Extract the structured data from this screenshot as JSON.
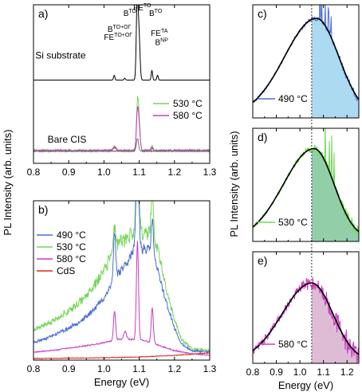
{
  "shared": {
    "ylabel": "PL Intensity (arb. units)",
    "xlabel": "Energy (eV)",
    "ref_line_energy": 1.05
  },
  "colors": {
    "black": "#000000",
    "c490": "#4a6fd3",
    "c530": "#77d65a",
    "c580": "#c83cc0",
    "cdS": "#e0241b",
    "gray": "#777777",
    "fill490": "#9ed3ee",
    "fill530": "#7fc79a",
    "fill580": "#d9b0cf"
  },
  "chart_data": [
    {
      "id": "a",
      "panel_label": "a)",
      "type": "line",
      "xlim": [
        0.8,
        1.3
      ],
      "xticks": [
        0.8,
        0.9,
        1.0,
        1.1,
        1.2,
        1.3
      ],
      "xticklabels": [
        "0.8",
        "0.9",
        "1.0",
        "1.1",
        "1.2",
        "1.3"
      ],
      "ylim": [
        0,
        1
      ],
      "y_ticks_labeled": false,
      "legend": {
        "placement": "right",
        "entries": [
          {
            "label": "530 °C",
            "color_key": "c530"
          },
          {
            "label": "580 °C",
            "color_key": "c580"
          }
        ]
      },
      "sample_labels": [
        {
          "text": "Si substrate",
          "x": 0.805,
          "y": 0.66
        },
        {
          "text": "Bare CIS",
          "x": 0.84,
          "y": 0.13
        }
      ],
      "annotations": [
        {
          "base": "FE",
          "sup": "TO+OΓ",
          "x": 1.0,
          "y": 0.78
        },
        {
          "base": "B",
          "sup": "TO+OΓ",
          "x": 1.01,
          "y": 0.83
        },
        {
          "base": "B",
          "sup": "TO",
          "x": 1.055,
          "y": 0.93
        },
        {
          "base": "FE",
          "sup": "TO",
          "x": 1.083,
          "y": 0.965
        },
        {
          "base": "B",
          "sup": "TO",
          "x": 1.128,
          "y": 0.93
        },
        {
          "base": "FE",
          "sup": "TA",
          "x": 1.133,
          "y": 0.805
        },
        {
          "base": "B",
          "sup": "NP",
          "x": 1.145,
          "y": 0.745
        }
      ],
      "series": [
        {
          "name": "Si substrate",
          "color_key": "black",
          "baseline": 0.525,
          "noise": 0.0,
          "seed": 1,
          "peaks": [
            [
              1.029,
              0.03,
              0.002
            ],
            [
              1.059,
              0.012,
              0.002
            ],
            [
              1.094,
              0.45,
              0.0025
            ],
            [
              1.099,
              0.3,
              0.003
            ],
            [
              1.136,
              0.06,
              0.002
            ],
            [
              1.152,
              0.03,
              0.002
            ]
          ]
        },
        {
          "name": "530 °C",
          "color_key": "c530",
          "baseline": 0.08,
          "noise": 0.006,
          "seed": 7,
          "peaks": [
            [
              1.03,
              0.03,
              0.004
            ],
            [
              1.095,
              0.29,
              0.003
            ],
            [
              1.1,
              0.15,
              0.003
            ],
            [
              1.136,
              0.03,
              0.003
            ]
          ]
        },
        {
          "name": "580 °C",
          "color_key": "c580",
          "baseline": 0.08,
          "noise": 0.006,
          "seed": 11,
          "peaks": [
            [
              1.03,
              0.02,
              0.004
            ],
            [
              1.095,
              0.24,
              0.003
            ],
            [
              1.1,
              0.12,
              0.003
            ],
            [
              1.136,
              0.02,
              0.003
            ]
          ]
        },
        {
          "name": "gray",
          "color_key": "gray",
          "baseline": 0.077,
          "noise": 0.003,
          "seed": 3,
          "peaks": [
            [
              1.095,
              0.08,
              0.003
            ]
          ]
        }
      ]
    },
    {
      "id": "b",
      "panel_label": "b)",
      "type": "line",
      "xlim": [
        0.8,
        1.3
      ],
      "xticks": [
        0.8,
        0.9,
        1.0,
        1.1,
        1.2,
        1.3
      ],
      "xticklabels": [
        "0.8",
        "0.9",
        "1.0",
        "1.1",
        "1.2",
        "1.3"
      ],
      "ylim": [
        0,
        1
      ],
      "y_ticks_labeled": false,
      "xlabel": "Energy (eV)",
      "legend": {
        "placement": "left",
        "entries": [
          {
            "label": "490 °C",
            "color_key": "c490"
          },
          {
            "label": "530 °C",
            "color_key": "c530"
          },
          {
            "label": "580 °C",
            "color_key": "c580"
          },
          {
            "label": "CdS",
            "color_key": "cdS"
          }
        ]
      },
      "series": [
        {
          "name": "530 °C",
          "color_key": "c530",
          "model": "broad",
          "seed": 21,
          "noise": 0.015,
          "knots": [
            [
              0.8,
              0.19
            ],
            [
              0.85,
              0.24
            ],
            [
              0.9,
              0.31
            ],
            [
              0.95,
              0.4
            ],
            [
              1.0,
              0.56
            ],
            [
              1.02,
              0.65
            ],
            [
              1.04,
              0.74
            ],
            [
              1.06,
              0.76
            ],
            [
              1.08,
              0.79
            ],
            [
              1.1,
              0.8
            ],
            [
              1.12,
              0.8
            ],
            [
              1.14,
              0.8
            ],
            [
              1.16,
              0.62
            ],
            [
              1.18,
              0.42
            ],
            [
              1.2,
              0.25
            ],
            [
              1.22,
              0.13
            ],
            [
              1.25,
              0.07
            ],
            [
              1.3,
              0.06
            ]
          ],
          "peaks": [
            [
              1.03,
              0.15,
              0.003
            ],
            [
              1.095,
              0.5,
              0.004
            ],
            [
              1.137,
              0.3,
              0.003
            ]
          ]
        },
        {
          "name": "490 °C",
          "color_key": "c490",
          "model": "broad",
          "seed": 23,
          "noise": 0.012,
          "knots": [
            [
              0.8,
              0.11
            ],
            [
              0.85,
              0.15
            ],
            [
              0.9,
              0.2
            ],
            [
              0.95,
              0.27
            ],
            [
              1.0,
              0.39
            ],
            [
              1.02,
              0.47
            ],
            [
              1.04,
              0.55
            ],
            [
              1.06,
              0.6
            ],
            [
              1.08,
              0.67
            ],
            [
              1.1,
              0.7
            ],
            [
              1.12,
              0.7
            ],
            [
              1.14,
              0.66
            ],
            [
              1.16,
              0.5
            ],
            [
              1.18,
              0.34
            ],
            [
              1.2,
              0.2
            ],
            [
              1.22,
              0.1
            ],
            [
              1.25,
              0.06
            ],
            [
              1.3,
              0.05
            ]
          ],
          "peaks": [
            [
              1.03,
              0.3,
              0.003
            ],
            [
              1.095,
              0.55,
              0.004
            ],
            [
              1.137,
              0.22,
              0.003
            ]
          ]
        },
        {
          "name": "580 °C",
          "color_key": "c580",
          "model": "broad",
          "seed": 29,
          "noise": 0.006,
          "knots": [
            [
              0.8,
              0.05
            ],
            [
              0.85,
              0.06
            ],
            [
              0.9,
              0.075
            ],
            [
              0.95,
              0.09
            ],
            [
              1.0,
              0.11
            ],
            [
              1.04,
              0.13
            ],
            [
              1.08,
              0.13
            ],
            [
              1.12,
              0.12
            ],
            [
              1.16,
              0.09
            ],
            [
              1.2,
              0.06
            ],
            [
              1.25,
              0.04
            ],
            [
              1.3,
              0.03
            ]
          ],
          "peaks": [
            [
              1.03,
              0.18,
              0.003
            ],
            [
              1.06,
              0.05,
              0.004
            ],
            [
              1.095,
              0.62,
              0.003
            ],
            [
              1.137,
              0.22,
              0.003
            ]
          ]
        },
        {
          "name": "CdS",
          "color_key": "cdS",
          "model": "broad",
          "seed": 31,
          "noise": 0.004,
          "knots": [
            [
              0.8,
              0.01
            ],
            [
              1.0,
              0.015
            ],
            [
              1.1,
              0.02
            ],
            [
              1.2,
              0.03
            ],
            [
              1.3,
              0.045
            ]
          ],
          "peaks": []
        }
      ]
    },
    {
      "id": "c",
      "panel_label": "c)",
      "type": "area",
      "xlim": [
        0.8,
        1.25
      ],
      "ylim": [
        0,
        1
      ],
      "xticks": [
        0.8,
        0.9,
        1.0,
        1.1,
        1.2
      ],
      "xticklabels": [],
      "legend": {
        "placement": "bottom-left",
        "entries": [
          {
            "label": "490 °C",
            "color_key": "c490"
          }
        ]
      },
      "fill_key": "fill490",
      "data_color_key": "c490",
      "fit": {
        "peak_x": 1.07,
        "peak_y": 0.86,
        "sigma_left": 0.135,
        "sigma_right": 0.095,
        "end_x": 1.25
      },
      "noise": 0.04,
      "seed": 41
    },
    {
      "id": "d",
      "panel_label": "d)",
      "type": "area",
      "xlim": [
        0.8,
        1.25
      ],
      "ylim": [
        0,
        1
      ],
      "xticks": [
        0.8,
        0.9,
        1.0,
        1.1,
        1.2
      ],
      "xticklabels": [],
      "legend": {
        "placement": "bottom-left",
        "entries": [
          {
            "label": "530 °C",
            "color_key": "c530"
          }
        ]
      },
      "fill_key": "fill530",
      "data_color_key": "c530",
      "fit": {
        "peak_x": 1.06,
        "peak_y": 0.8,
        "sigma_left": 0.13,
        "sigma_right": 0.085,
        "end_x": 1.25
      },
      "noise": 0.06,
      "seed": 43
    },
    {
      "id": "e",
      "panel_label": "e)",
      "type": "area",
      "xlim": [
        0.8,
        1.25
      ],
      "ylim": [
        0,
        1
      ],
      "xticks": [
        0.8,
        0.9,
        1.0,
        1.1,
        1.2
      ],
      "xticklabels": [
        "0.8",
        "0.9",
        "1.0",
        "1.1",
        "1.2"
      ],
      "xlabel": "Energy (eV)",
      "legend": {
        "placement": "bottom-left",
        "entries": [
          {
            "label": "580 °C",
            "color_key": "c580"
          }
        ]
      },
      "fill_key": "fill580",
      "data_color_key": "c580",
      "fit": {
        "peak_x": 1.05,
        "peak_y": 0.7,
        "sigma_left": 0.125,
        "sigma_right": 0.09,
        "end_x": 1.25
      },
      "noise": 0.12,
      "seed": 47
    }
  ]
}
